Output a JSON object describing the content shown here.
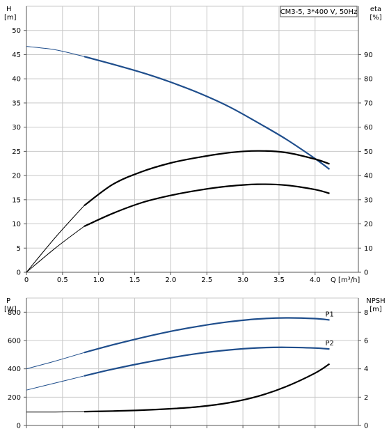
{
  "chart_data": [
    {
      "type": "line",
      "title": "CM3-5, 3*400 V, 50Hz",
      "ylabel_left": "H",
      "ylabel_left_unit": "[m]",
      "ylabel_right": "eta",
      "ylabel_right_unit": "[%]",
      "xlabel": "Q [m³/h]",
      "xlim": [
        0,
        4.6
      ],
      "ylim_left": [
        0,
        55
      ],
      "ylim_right": [
        0,
        110
      ],
      "x_ticks": [
        0,
        0.5,
        1.0,
        1.5,
        2.0,
        2.5,
        3.0,
        3.5,
        4.0
      ],
      "x_tick_labels": [
        "0",
        "0.5",
        "1.0",
        "1.5",
        "2.0",
        "2.5",
        "3.0",
        "3.5",
        "4.0"
      ],
      "y_ticks_left": [
        0,
        5,
        10,
        15,
        20,
        25,
        30,
        35,
        40,
        45,
        50
      ],
      "y_ticks_right": [
        0,
        10,
        20,
        30,
        40,
        50,
        60,
        70,
        80,
        90
      ],
      "grid": true,
      "series": [
        {
          "axis": "left",
          "color": "#1f4e8c",
          "x": [
            0,
            0.4,
            0.8,
            1.2,
            1.6,
            2.0,
            2.4,
            2.8,
            3.2,
            3.6,
            4.0,
            4.2
          ],
          "y": [
            46.7,
            46.0,
            44.6,
            43.0,
            41.3,
            39.3,
            37.0,
            34.3,
            31.0,
            27.5,
            23.5,
            21.3
          ]
        },
        {
          "axis": "right",
          "color": "#000000",
          "x": [
            0,
            0.4,
            0.8,
            1.2,
            1.6,
            2.0,
            2.4,
            2.8,
            3.2,
            3.6,
            4.0,
            4.2
          ],
          "y": [
            0,
            14.4,
            27.6,
            36.4,
            41.6,
            45.2,
            47.6,
            49.4,
            50.2,
            49.5,
            46.8,
            44.8
          ]
        },
        {
          "axis": "right",
          "color": "#000000",
          "x": [
            0,
            0.4,
            0.8,
            1.2,
            1.6,
            2.0,
            2.4,
            2.8,
            3.2,
            3.6,
            4.0,
            4.2
          ],
          "y": [
            0,
            10.0,
            19.0,
            24.4,
            28.8,
            31.8,
            34.0,
            35.6,
            36.4,
            36.0,
            34.2,
            32.6
          ]
        }
      ]
    },
    {
      "type": "line",
      "ylabel_left": "P",
      "ylabel_left_unit": "[W]",
      "ylabel_right": "NPSH",
      "ylabel_right_unit": "[m]",
      "xlim": [
        0,
        4.6
      ],
      "ylim_left": [
        0,
        900
      ],
      "ylim_right": [
        0,
        9
      ],
      "y_ticks_left": [
        0,
        200,
        400,
        600,
        800
      ],
      "y_ticks_right": [
        0,
        2,
        4,
        6,
        8
      ],
      "grid": true,
      "series": [
        {
          "name": "P1",
          "axis": "left",
          "color": "#1f4e8c",
          "x": [
            0,
            0.4,
            0.8,
            1.2,
            1.6,
            2.0,
            2.4,
            2.8,
            3.2,
            3.6,
            4.0,
            4.2
          ],
          "y": [
            400,
            455,
            515,
            570,
            620,
            665,
            702,
            732,
            752,
            760,
            755,
            745
          ]
        },
        {
          "name": "P2",
          "axis": "left",
          "color": "#1f4e8c",
          "x": [
            0,
            0.4,
            0.8,
            1.2,
            1.6,
            2.0,
            2.4,
            2.8,
            3.2,
            3.6,
            4.0,
            4.2
          ],
          "y": [
            250,
            300,
            350,
            398,
            440,
            478,
            510,
            533,
            548,
            552,
            547,
            540
          ]
        },
        {
          "name": "NPSH",
          "axis": "right",
          "color": "#000000",
          "x": [
            0,
            0.4,
            0.8,
            1.2,
            1.6,
            2.0,
            2.4,
            2.8,
            3.2,
            3.6,
            4.0,
            4.2
          ],
          "y": [
            0.95,
            0.95,
            0.98,
            1.02,
            1.08,
            1.18,
            1.33,
            1.6,
            2.05,
            2.75,
            3.7,
            4.35
          ]
        }
      ]
    }
  ]
}
